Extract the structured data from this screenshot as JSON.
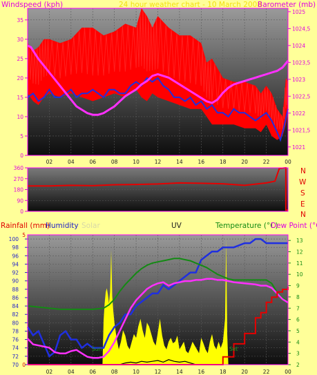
{
  "headers": {
    "windspeed": "Windspeed (kph)",
    "title": "24 hour weather chart - 10 March 2008",
    "barometer": "Barometer (mb)",
    "rainfall": "Rainfall (mm)",
    "humidity": "Humidity",
    "solar": "Solar",
    "uv": "UV",
    "temperature": "Temperature (°C)",
    "dewpoint": "Dew Point (°C)"
  },
  "compass": [
    "N",
    "W",
    "S",
    "E",
    "N"
  ],
  "annotations": {
    "sunrise": "Sun",
    "sunset": "Set"
  },
  "colors": {
    "background": "#ffff99",
    "wind_gust": "#ff0000",
    "wind_avg": "#1f2fe0",
    "barometer": "#ff30ff",
    "direction": "#e80000",
    "humidity": "#1f2fe0",
    "solar": "#ffff00",
    "uv": "#000000",
    "temperature": "#138a13",
    "dewpoint": "#ff30ff",
    "rainfall": "#e80000",
    "frame": "#ff00ff"
  },
  "chart_data": [
    {
      "type": "line",
      "panel": "wind-barometer",
      "title": "24 hour weather chart - 10 March 2008",
      "xlabel": "",
      "ylabel": "Windspeed (kph)",
      "y2label": "Barometer (mb)",
      "x_ticks": [
        "02",
        "04",
        "06",
        "08",
        "10",
        "12",
        "14",
        "16",
        "18",
        "20",
        "22",
        "00"
      ],
      "ylim": [
        0,
        38
      ],
      "y_ticks": [
        0,
        5,
        10,
        15,
        20,
        25,
        30,
        35
      ],
      "y2lim": [
        1020.75,
        1025.1
      ],
      "y2_ticks": [
        1021,
        1021.5,
        1022,
        1022.5,
        1023,
        1023.5,
        1024,
        1024.5,
        1025
      ],
      "y2_tick_labels": [
        "1021",
        "1021,5",
        "1022",
        "1022,5",
        "1023",
        "1023,5",
        "1024",
        "1024,5",
        "1025"
      ],
      "grid": true,
      "series": [
        {
          "role": "gust",
          "axis": "left",
          "style": "band",
          "x": [
            0,
            0.5,
            1,
            1.5,
            2,
            3,
            4,
            5,
            6,
            7,
            8,
            9,
            10,
            10.5,
            11,
            11.5,
            12,
            13,
            14,
            15,
            16,
            16.5,
            17,
            18,
            19,
            20,
            21,
            21.5,
            22,
            22.5,
            23,
            23.5,
            23.8,
            24
          ],
          "low": [
            16,
            14,
            13,
            15,
            16,
            15,
            16,
            15,
            14,
            15,
            16,
            15,
            17,
            15,
            14,
            16,
            15,
            14,
            13,
            12,
            12,
            10,
            8,
            8,
            8,
            7,
            7,
            6,
            8,
            5,
            4,
            5,
            8,
            11
          ],
          "high": [
            29,
            27,
            28,
            30,
            30,
            29,
            30,
            33,
            33,
            31,
            32,
            34,
            33,
            38,
            36,
            33,
            36,
            33,
            31,
            31,
            29,
            24,
            25,
            20,
            19,
            19,
            18,
            16,
            18,
            16,
            12,
            10,
            20,
            19
          ]
        },
        {
          "role": "average",
          "axis": "left",
          "x": [
            0,
            0.5,
            1,
            1.5,
            2,
            2.5,
            3,
            3.5,
            4,
            4.5,
            5,
            5.5,
            6,
            6.5,
            7,
            7.5,
            8,
            8.5,
            9,
            9.5,
            10,
            10.5,
            11,
            11.5,
            12,
            12.5,
            13,
            13.5,
            14,
            14.5,
            15,
            15.5,
            16,
            16.5,
            17,
            17.5,
            18,
            18.5,
            19,
            19.5,
            20,
            20.5,
            21,
            21.5,
            22,
            22.5,
            23,
            23.3,
            23.6,
            24
          ],
          "values": [
            15,
            16,
            14,
            15,
            17,
            15,
            15,
            16,
            17,
            15,
            16,
            16,
            17,
            16,
            15,
            17,
            17,
            16,
            16,
            18,
            19,
            18,
            20,
            19,
            20,
            18,
            17,
            15,
            15,
            14,
            15,
            13,
            14,
            12,
            13,
            11,
            11,
            10,
            12,
            11,
            11,
            10,
            9,
            10,
            11,
            9,
            6,
            4,
            7,
            12
          ]
        },
        {
          "role": "barometer",
          "axis": "right",
          "x": [
            0,
            0.3,
            0.6,
            1,
            1.5,
            2,
            2.5,
            3,
            3.5,
            4,
            4.5,
            5,
            5.5,
            6,
            6.5,
            7,
            7.5,
            8,
            8.5,
            9,
            9.5,
            10,
            10.5,
            11,
            11.5,
            12,
            12.5,
            13,
            13.5,
            14,
            14.5,
            15,
            15.5,
            16,
            16.5,
            17,
            17.5,
            18,
            18.5,
            19,
            19.5,
            20,
            20.5,
            21,
            21.5,
            22,
            22.5,
            23,
            23.5,
            24
          ],
          "values": [
            1024.0,
            1023.95,
            1023.8,
            1023.6,
            1023.4,
            1023.2,
            1023.0,
            1022.8,
            1022.6,
            1022.4,
            1022.2,
            1022.1,
            1022.0,
            1021.95,
            1021.95,
            1022.0,
            1022.1,
            1022.2,
            1022.35,
            1022.5,
            1022.6,
            1022.7,
            1022.85,
            1022.95,
            1023.1,
            1023.15,
            1023.1,
            1023.05,
            1022.95,
            1022.85,
            1022.75,
            1022.65,
            1022.55,
            1022.45,
            1022.35,
            1022.3,
            1022.4,
            1022.6,
            1022.75,
            1022.85,
            1022.9,
            1022.95,
            1023.0,
            1023.05,
            1023.1,
            1023.15,
            1023.2,
            1023.25,
            1023.35,
            1023.55
          ]
        }
      ]
    },
    {
      "type": "line",
      "panel": "wind-direction",
      "ylim": [
        0,
        360
      ],
      "y_ticks": [
        0,
        90,
        180,
        270,
        360
      ],
      "grid": true,
      "series": [
        {
          "role": "direction",
          "x": [
            0,
            2,
            4,
            6,
            8,
            10,
            12,
            14,
            16,
            18,
            20,
            22,
            22.8,
            23.2,
            23.8,
            23.8,
            24
          ],
          "values": [
            210,
            210,
            215,
            212,
            220,
            222,
            226,
            235,
            232,
            228,
            215,
            235,
            250,
            355,
            360,
            10,
            10
          ]
        }
      ]
    },
    {
      "type": "line",
      "panel": "humidity-temperature",
      "x_ticks": [
        "02",
        "04",
        "06",
        "08",
        "10",
        "12",
        "14",
        "16",
        "18",
        "20",
        "22",
        "00"
      ],
      "humidity_ylim": [
        70,
        101
      ],
      "humidity_ticks": [
        70,
        72,
        74,
        76,
        78,
        80,
        82,
        84,
        86,
        88,
        90,
        92,
        94,
        96,
        98,
        100
      ],
      "temperature_ylim": [
        2,
        13.5
      ],
      "temperature_ticks": [
        2,
        3,
        4,
        5,
        6,
        7,
        8,
        9,
        10,
        11,
        12,
        13
      ],
      "grid": true,
      "series": [
        {
          "role": "humidity",
          "x": [
            0,
            0.5,
            1,
            1.5,
            2,
            2.5,
            3,
            3.5,
            4,
            4.5,
            5,
            5.5,
            6,
            6.5,
            7,
            7.5,
            8,
            8.5,
            9,
            9.5,
            10,
            10.5,
            11,
            11.5,
            12,
            12.5,
            13,
            13.5,
            14,
            14.5,
            15,
            15.5,
            16,
            16.5,
            17,
            17.5,
            18,
            18.5,
            19,
            20,
            20.5,
            21,
            21.5,
            22,
            22.5,
            23,
            23.5,
            24
          ],
          "values": [
            79,
            77,
            78,
            75,
            72,
            73,
            77,
            78,
            76,
            76,
            74,
            75,
            74,
            74,
            74,
            77,
            79,
            80,
            82,
            82,
            84,
            85,
            86,
            87,
            87,
            89,
            88,
            89,
            90,
            91,
            92,
            92,
            95,
            96,
            97,
            97,
            98,
            98,
            98,
            99,
            99,
            100,
            100,
            99,
            99,
            99,
            99,
            99
          ]
        },
        {
          "role": "temperature",
          "x": [
            0,
            1,
            2,
            3,
            4,
            5,
            6,
            7,
            7.5,
            8,
            8.5,
            9,
            9.5,
            10,
            10.5,
            11,
            11.5,
            12,
            12.5,
            13,
            13.5,
            14,
            14.5,
            15,
            15.5,
            16,
            16.5,
            17,
            17.5,
            18,
            18.5,
            19,
            20,
            21,
            21.5,
            22,
            22.5,
            23,
            23.5,
            24
          ],
          "values": [
            7.2,
            7.1,
            7.0,
            6.9,
            6.9,
            6.9,
            6.9,
            7.0,
            7.3,
            7.8,
            8.5,
            9.1,
            9.6,
            10.1,
            10.5,
            10.8,
            11.0,
            11.1,
            11.2,
            11.3,
            11.4,
            11.4,
            11.3,
            11.2,
            11.0,
            10.8,
            10.6,
            10.3,
            10.0,
            9.8,
            9.6,
            9.5,
            9.5,
            9.5,
            9.5,
            9.5,
            9.2,
            8.4,
            7.9,
            7.6
          ]
        },
        {
          "role": "dewpoint",
          "x": [
            0,
            0.5,
            1,
            1.5,
            2,
            2.5,
            3,
            3.5,
            4,
            4.5,
            5,
            5.5,
            6,
            6.5,
            7,
            7.5,
            8,
            8.5,
            9,
            9.5,
            10,
            10.5,
            11,
            11.5,
            12,
            12.5,
            13,
            13.5,
            14,
            14.5,
            15,
            15.5,
            16,
            16.5,
            17,
            17.5,
            18,
            18.5,
            19,
            20,
            21,
            21.5,
            22,
            22.5,
            23,
            23.5,
            24
          ],
          "values": [
            4.3,
            3.8,
            3.7,
            3.6,
            3.5,
            3.1,
            3.0,
            3.0,
            3.2,
            3.3,
            3.0,
            2.7,
            2.6,
            2.6,
            2.7,
            3.2,
            4.0,
            5.0,
            6.0,
            7.0,
            7.7,
            8.2,
            8.7,
            9.0,
            9.2,
            9.3,
            9.0,
            9.2,
            9.3,
            9.4,
            9.4,
            9.5,
            9.5,
            9.6,
            9.6,
            9.5,
            9.5,
            9.4,
            9.3,
            9.2,
            9.1,
            9.0,
            9.0,
            8.8,
            8.3,
            7.8,
            7.5
          ]
        }
      ]
    },
    {
      "type": "area",
      "panel": "solar-uv",
      "series": [
        {
          "role": "solar",
          "x": [
            6.9,
            7.0,
            7.1,
            7.2,
            7.3,
            7.4,
            7.5,
            7.6,
            7.7,
            7.8,
            7.9,
            8.0,
            8.2,
            8.4,
            8.6,
            8.8,
            9.0,
            9.2,
            9.4,
            9.6,
            9.8,
            10.0,
            10.2,
            10.4,
            10.6,
            10.8,
            11.0,
            11.2,
            11.4,
            11.6,
            11.8,
            12.0,
            12.2,
            12.4,
            12.6,
            12.8,
            13.0,
            13.2,
            13.4,
            13.6,
            13.8,
            14.0,
            14.2,
            14.4,
            14.6,
            14.8,
            15.0,
            15.2,
            15.4,
            15.6,
            15.8,
            16.0,
            16.2,
            16.4,
            16.6,
            16.8,
            17.0,
            17.2,
            17.4,
            17.6,
            17.8,
            18.0,
            18.2,
            18.3,
            18.4,
            18.5
          ],
          "values": [
            0,
            58,
            80,
            95,
            100,
            92,
            80,
            95,
            150,
            90,
            70,
            55,
            35,
            20,
            30,
            45,
            38,
            25,
            20,
            30,
            40,
            35,
            50,
            60,
            45,
            35,
            55,
            50,
            40,
            30,
            25,
            42,
            60,
            38,
            25,
            20,
            30,
            35,
            28,
            30,
            38,
            20,
            25,
            30,
            18,
            15,
            22,
            30,
            25,
            20,
            15,
            35,
            28,
            20,
            15,
            30,
            40,
            25,
            20,
            30,
            22,
            30,
            60,
            165,
            40,
            0
          ]
        },
        {
          "role": "uv",
          "x": [
            8.5,
            9.0,
            9.5,
            10.0,
            10.5,
            11.0,
            11.5,
            12.0,
            12.5,
            13.0,
            13.5,
            14.0,
            14.5,
            15.0,
            15.5
          ],
          "values": [
            0,
            0.4,
            0.6,
            0.4,
            0.8,
            0.6,
            0.8,
            1.0,
            0.6,
            1.2,
            0.8,
            0.6,
            0.8,
            0.4,
            0
          ]
        }
      ]
    },
    {
      "type": "line",
      "panel": "rainfall",
      "ylim": [
        0,
        5
      ],
      "y_ticks": [
        0,
        5
      ],
      "series": [
        {
          "role": "rainfall",
          "x": [
            0,
            17.5,
            18,
            18.5,
            19,
            19.5,
            20,
            20.5,
            21,
            21.5,
            22,
            22.5,
            23,
            23.5,
            24
          ],
          "values": [
            0,
            0,
            0.3,
            0.3,
            0.8,
            0.8,
            1.2,
            1.2,
            1.8,
            2.0,
            2.4,
            2.6,
            2.8,
            2.9,
            3.0
          ]
        }
      ]
    }
  ]
}
